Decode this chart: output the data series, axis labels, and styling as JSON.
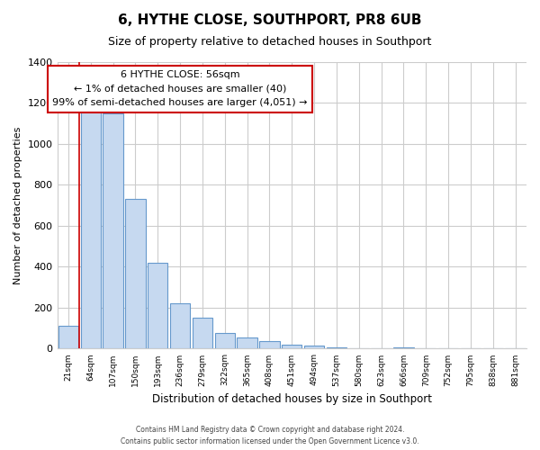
{
  "title": "6, HYTHE CLOSE, SOUTHPORT, PR8 6UB",
  "subtitle": "Size of property relative to detached houses in Southport",
  "xlabel": "Distribution of detached houses by size in Southport",
  "ylabel": "Number of detached properties",
  "bar_labels": [
    "21sqm",
    "64sqm",
    "107sqm",
    "150sqm",
    "193sqm",
    "236sqm",
    "279sqm",
    "322sqm",
    "365sqm",
    "408sqm",
    "451sqm",
    "494sqm",
    "537sqm",
    "580sqm",
    "623sqm",
    "666sqm",
    "709sqm",
    "752sqm",
    "795sqm",
    "838sqm",
    "881sqm"
  ],
  "bar_values": [
    110,
    1160,
    1150,
    730,
    420,
    220,
    150,
    75,
    55,
    35,
    20,
    15,
    5,
    0,
    0,
    5,
    0,
    0,
    0,
    0,
    0
  ],
  "bar_face_color": "#c6d9f0",
  "bar_edge_color": "#6699cc",
  "annotation_box_text": "6 HYTHE CLOSE: 56sqm\n← 1% of detached houses are smaller (40)\n99% of semi-detached houses are larger (4,051) →",
  "annotation_box_color": "#ffffff",
  "annotation_box_edge_color": "#cc0000",
  "marker_line_color": "#cc0000",
  "ylim": [
    0,
    1400
  ],
  "yticks": [
    0,
    200,
    400,
    600,
    800,
    1000,
    1200,
    1400
  ],
  "grid_color": "#cccccc",
  "footer_line1": "Contains HM Land Registry data © Crown copyright and database right 2024.",
  "footer_line2": "Contains public sector information licensed under the Open Government Licence v3.0.",
  "background_color": "#ffffff",
  "title_fontsize": 11,
  "subtitle_fontsize": 9
}
